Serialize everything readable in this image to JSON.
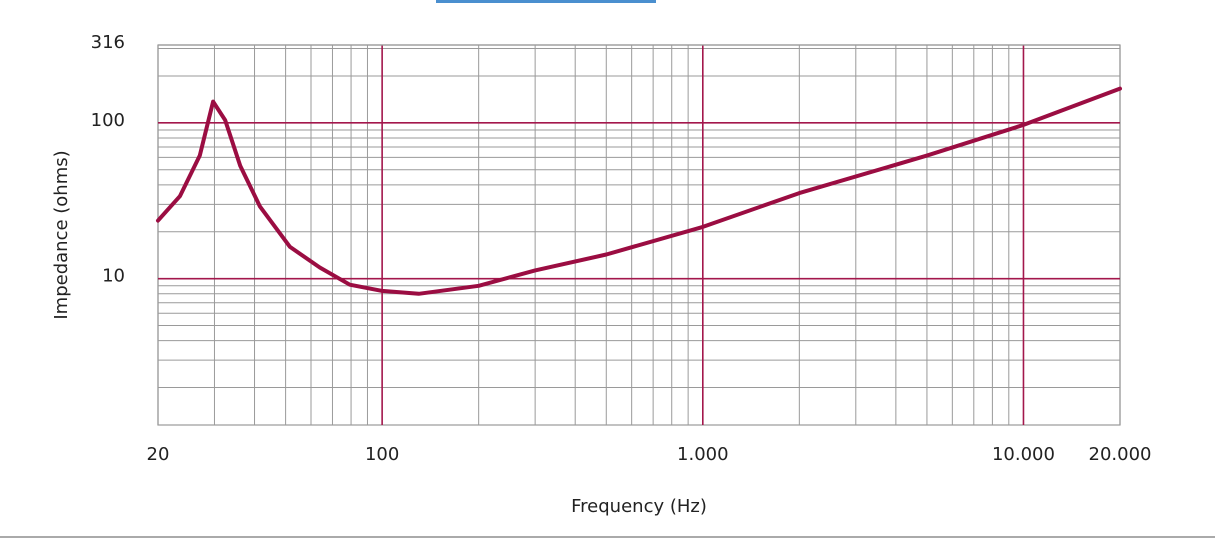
{
  "chart_data": {
    "type": "line",
    "xlabel": "Frequency (Hz)",
    "ylabel": "Impedance (ohms)",
    "xscale": "log",
    "yscale": "log",
    "xlim": [
      20,
      20000
    ],
    "ylim": [
      1.15,
      316
    ],
    "xticks": [
      20,
      100,
      {
        "value": 1000,
        "label": "1.000"
      },
      {
        "value": 10000,
        "label": "10.000"
      },
      {
        "value": 20000,
        "label": "20.000"
      }
    ],
    "yticks": [
      10,
      100,
      316
    ],
    "xminorticks": [
      30,
      40,
      50,
      60,
      70,
      80,
      90,
      200,
      300,
      400,
      500,
      600,
      700,
      800,
      900,
      2000,
      3000,
      4000,
      5000,
      6000,
      7000,
      8000,
      9000
    ],
    "yminorticks": [
      2,
      3,
      4,
      5,
      6,
      7,
      8,
      9,
      20,
      30,
      40,
      50,
      60,
      70,
      80,
      90,
      200,
      300
    ],
    "grid": true,
    "major_grid_color": "#a3174c",
    "minor_grid_color": "#9a9a9a",
    "series": [
      {
        "color": "#9b0d42",
        "x": [
          20,
          23.4,
          27,
          29.7,
          32.4,
          36.1,
          41.6,
          51.6,
          63.9,
          79.3,
          100,
          130,
          200,
          300,
          500,
          1000,
          2000,
          5000,
          10000,
          20000
        ],
        "values": [
          23.6,
          33.8,
          61.7,
          137,
          104,
          53,
          29,
          16,
          11.8,
          9.14,
          8.35,
          8.0,
          9.0,
          11.3,
          14.3,
          21.5,
          35.4,
          61.6,
          97,
          166
        ]
      }
    ]
  }
}
